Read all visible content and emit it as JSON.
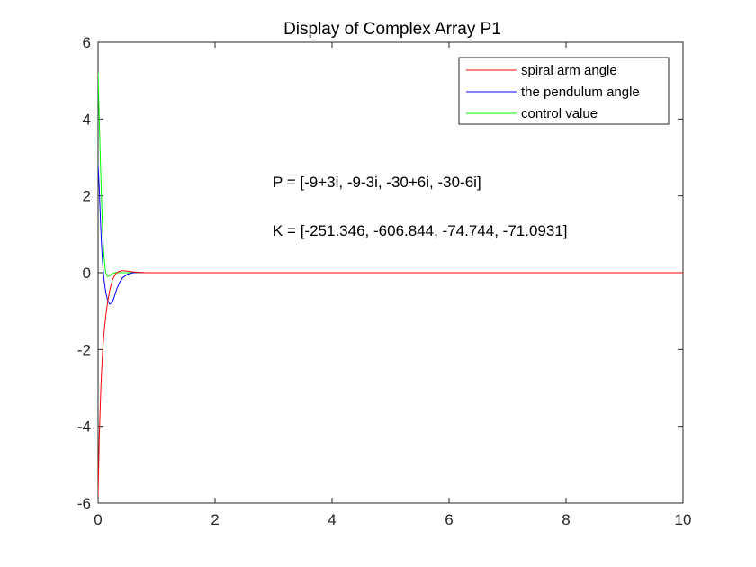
{
  "chart_data": {
    "type": "line",
    "title": "Display of Complex Array P1",
    "xlabel": "",
    "ylabel": "",
    "xlim": [
      0,
      10
    ],
    "ylim": [
      -6,
      6
    ],
    "xticks": [
      0,
      2,
      4,
      6,
      8,
      10
    ],
    "yticks": [
      -6,
      -4,
      -2,
      0,
      2,
      4,
      6
    ],
    "grid": false,
    "legend_position": "top-right",
    "annotations": [
      "P = [-9+3i, -9-3i, -30+6i, -30-6i]",
      "K = [-251.346, -606.844, -74.744, -71.0931]"
    ],
    "series": [
      {
        "name": "spiral arm angle",
        "color": "#ff0000",
        "x": [
          0,
          0.02,
          0.05,
          0.08,
          0.1,
          0.13,
          0.16,
          0.2,
          0.25,
          0.3,
          0.35,
          0.4,
          0.45,
          0.5,
          0.6,
          0.7,
          0.8,
          1.0,
          1.5,
          2,
          4,
          6,
          8,
          10
        ],
        "y": [
          -5.8,
          -4.3,
          -2.9,
          -2.0,
          -1.6,
          -1.15,
          -0.8,
          -0.45,
          -0.17,
          -0.03,
          0.03,
          0.05,
          0.05,
          0.04,
          0.02,
          0.01,
          0.0,
          0,
          0,
          0,
          0,
          0,
          0,
          0
        ]
      },
      {
        "name": "the pendulum angle",
        "color": "#0000ff",
        "x": [
          0,
          0.02,
          0.04,
          0.06,
          0.08,
          0.1,
          0.13,
          0.16,
          0.2,
          0.24,
          0.28,
          0.32,
          0.37,
          0.42,
          0.5,
          0.6,
          0.7,
          0.8,
          1.0,
          1.5,
          2,
          4,
          6,
          8,
          10
        ],
        "y": [
          2.8,
          2.2,
          1.4,
          0.7,
          0.2,
          -0.15,
          -0.5,
          -0.7,
          -0.82,
          -0.78,
          -0.62,
          -0.42,
          -0.25,
          -0.13,
          -0.04,
          0.0,
          0.01,
          0.0,
          0,
          0,
          0,
          0,
          0,
          0,
          0
        ]
      },
      {
        "name": "control value",
        "color": "#00ff00",
        "x": [
          0,
          0.02,
          0.04,
          0.06,
          0.08,
          0.1,
          0.13,
          0.16,
          0.2,
          0.25,
          0.3,
          0.4,
          0.5,
          0.7,
          1.0,
          1.5,
          2,
          4,
          6,
          8,
          10
        ],
        "y": [
          5.2,
          4.0,
          2.9,
          1.9,
          1.0,
          0.45,
          0.0,
          -0.1,
          -0.07,
          -0.02,
          0.0,
          0.0,
          0,
          0,
          0,
          0,
          0,
          0,
          0,
          0,
          0
        ]
      }
    ]
  }
}
